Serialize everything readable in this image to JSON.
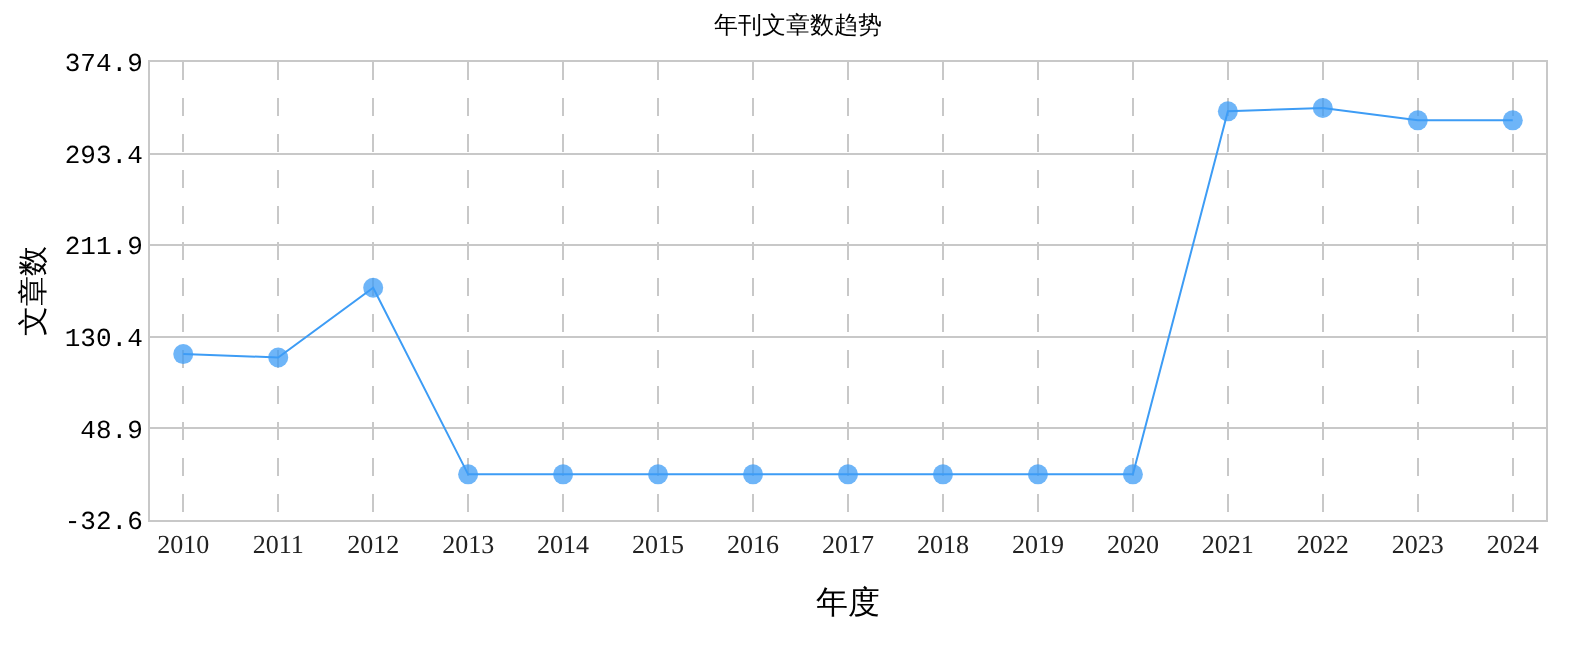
{
  "chart_data": {
    "type": "line",
    "title": "年刊文章数趋势",
    "xlabel": "年度",
    "ylabel": "文章数",
    "categories": [
      "2010",
      "2011",
      "2012",
      "2013",
      "2014",
      "2015",
      "2016",
      "2017",
      "2018",
      "2019",
      "2020",
      "2021",
      "2022",
      "2023",
      "2024"
    ],
    "series": [
      {
        "color": "#3d9cf5",
        "values": [
          115,
          112,
          174,
          8,
          8,
          8,
          8,
          8,
          8,
          8,
          8,
          331,
          334,
          323,
          323
        ]
      }
    ],
    "ylim": [
      -32.6,
      374.9
    ],
    "yticks": [
      -32.6,
      48.9,
      130.4,
      211.9,
      293.4,
      374.9
    ],
    "grid": true,
    "marker": "circle",
    "line_style": "solid"
  }
}
